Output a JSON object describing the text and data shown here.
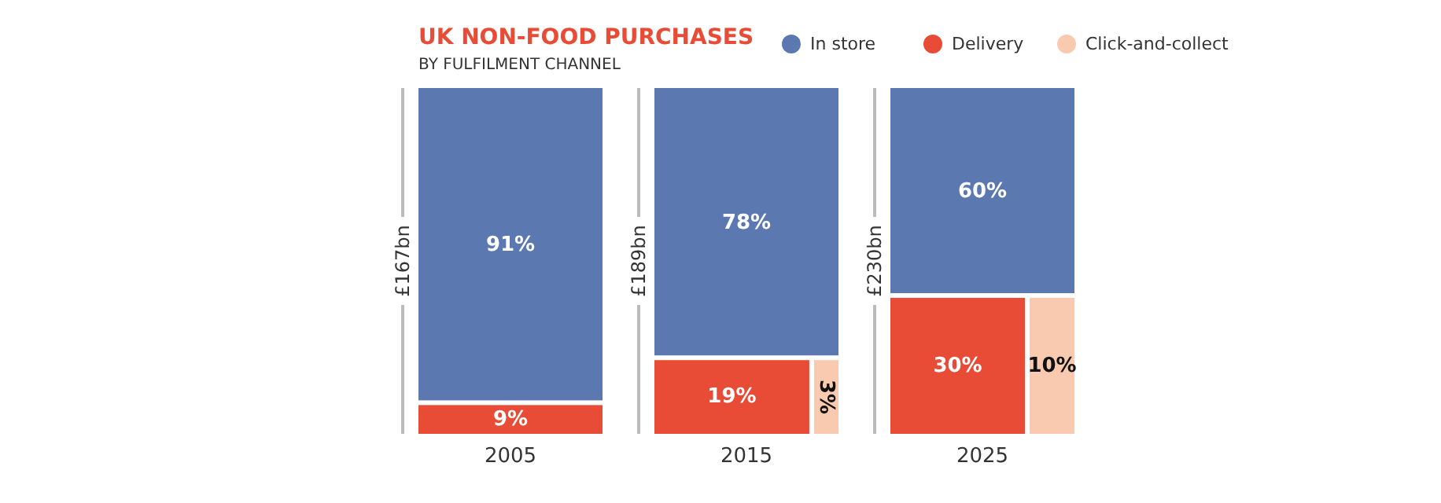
{
  "chart_data": {
    "type": "other",
    "title": "UK NON-FOOD PURCHASES",
    "subtitle": "BY FULFILMENT CHANNEL",
    "categories": [
      "2005",
      "2015",
      "2025"
    ],
    "totals": [
      "£167bn",
      "£189bn",
      "£230bn"
    ],
    "legend": "top right",
    "series": [
      {
        "name": "In store",
        "color": "#5b79b0",
        "values": [
          91,
          78,
          60
        ],
        "value_labels": [
          "91%",
          "78%",
          "60%"
        ]
      },
      {
        "name": "Delivery",
        "color": "#e84c37",
        "values": [
          9,
          19,
          30
        ],
        "value_labels": [
          "9%",
          "19%",
          "30%"
        ]
      },
      {
        "name": "Click-and-collect",
        "color": "#f9c9b0",
        "values": [
          null,
          3,
          10
        ],
        "value_labels": [
          null,
          "3%",
          "10%"
        ]
      }
    ]
  }
}
